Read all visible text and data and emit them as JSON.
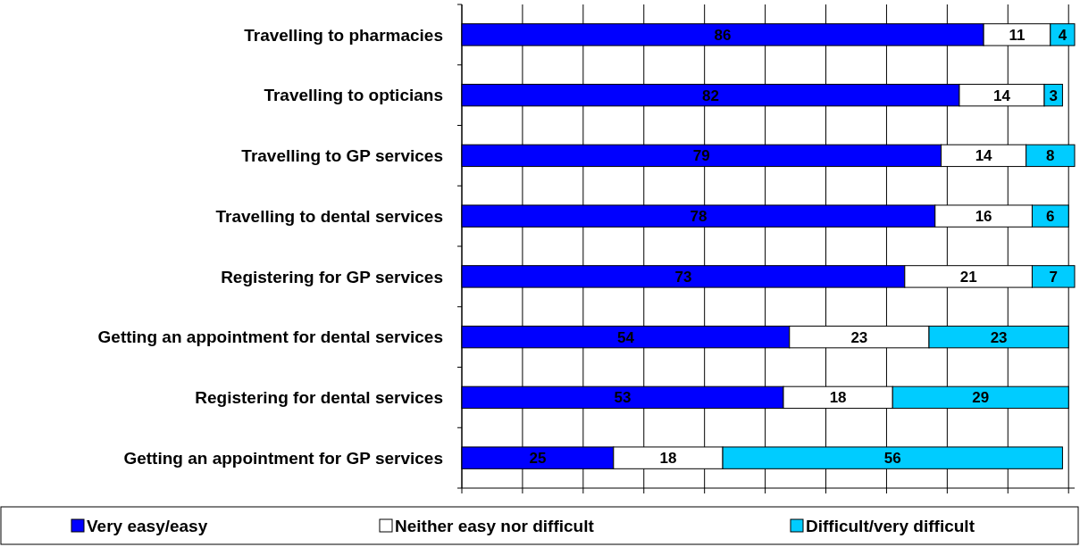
{
  "chart_data": {
    "type": "bar",
    "orientation": "horizontal",
    "stacked": true,
    "data_labels": true,
    "grid": "x",
    "legend": "bottom",
    "tick_labels": "y",
    "categories": [
      "Travelling to pharmacies",
      "Travelling to opticians",
      "Travelling to GP services",
      "Travelling to dental services",
      "Registering for GP services",
      "Getting an appointment for dental services",
      "Registering for dental services",
      "Getting an appointment for GP services"
    ],
    "xlim": [
      0,
      101
    ],
    "xticks": [
      {
        "value": 0,
        "label": null
      },
      {
        "value": 10,
        "label": null
      },
      {
        "value": 20,
        "label": null
      },
      {
        "value": 30,
        "label": null
      },
      {
        "value": 40,
        "label": null
      },
      {
        "value": 50,
        "label": null
      },
      {
        "value": 60,
        "label": null
      },
      {
        "value": 70,
        "label": null
      },
      {
        "value": 80,
        "label": null
      },
      {
        "value": 90,
        "label": null
      },
      {
        "value": 100,
        "label": null
      }
    ],
    "series": [
      {
        "name": "Very easy/easy",
        "color": "#0000ff",
        "values": [
          86,
          82,
          79,
          78,
          73,
          54,
          53,
          25
        ]
      },
      {
        "name": "Neither easy nor difficult",
        "color": "#ffffff",
        "values": [
          11,
          14,
          14,
          16,
          21,
          23,
          18,
          18
        ]
      },
      {
        "name": "Difficult/very difficult",
        "color": "#00ccff",
        "values": [
          4,
          3,
          8,
          6,
          7,
          23,
          29,
          56
        ]
      }
    ]
  }
}
